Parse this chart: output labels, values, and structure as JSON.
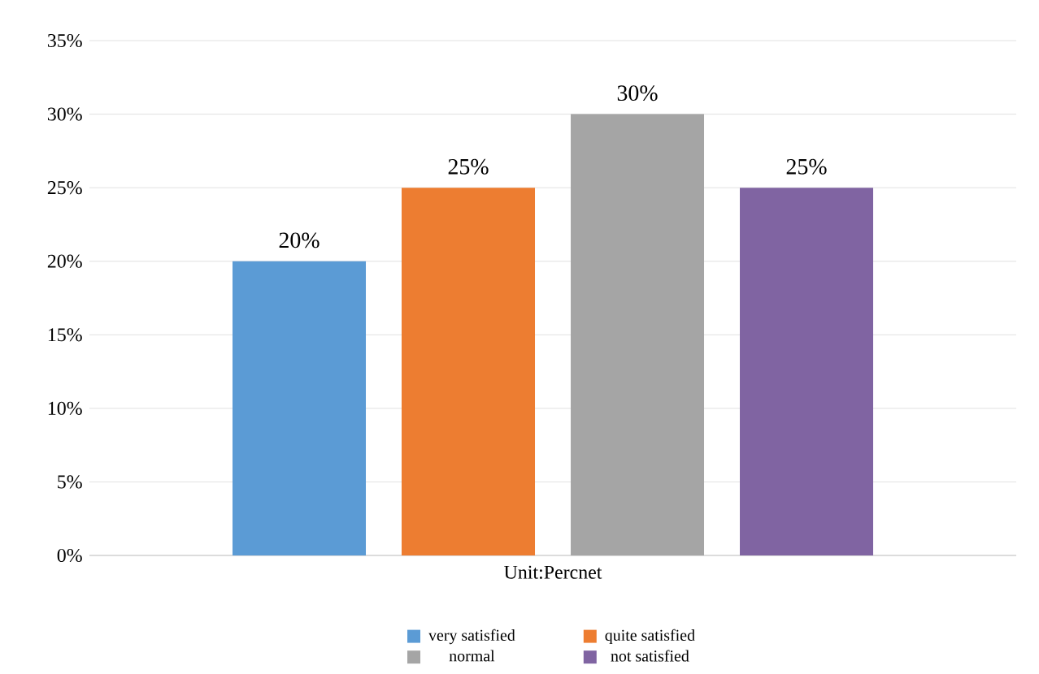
{
  "chart_data": {
    "type": "bar",
    "categories": [
      null
    ],
    "xlabel": "Unit:Percnet",
    "series": [
      {
        "name": "very satisfied",
        "color": "#5b9bd5",
        "values": [
          20
        ],
        "value_labels": [
          "20%"
        ]
      },
      {
        "name": "quite satisfied",
        "color": "#ed7d31",
        "values": [
          25
        ],
        "value_labels": [
          "25%"
        ]
      },
      {
        "name": "normal",
        "color": "#a5a5a5",
        "values": [
          30
        ],
        "value_labels": [
          "30%"
        ]
      },
      {
        "name": "not satisfied",
        "color": "#8064a2",
        "values": [
          25
        ],
        "value_labels": [
          "25%"
        ]
      }
    ],
    "ylim": [
      0,
      35
    ],
    "yticks": [
      {
        "value": 0,
        "label": "0%"
      },
      {
        "value": 5,
        "label": "5%"
      },
      {
        "value": 10,
        "label": "10%"
      },
      {
        "value": 15,
        "label": "15%"
      },
      {
        "value": 20,
        "label": "20%"
      },
      {
        "value": 25,
        "label": "25%"
      },
      {
        "value": 30,
        "label": "30%"
      },
      {
        "value": 35,
        "label": "35%"
      }
    ],
    "grid": "y",
    "legend": "bottom"
  }
}
